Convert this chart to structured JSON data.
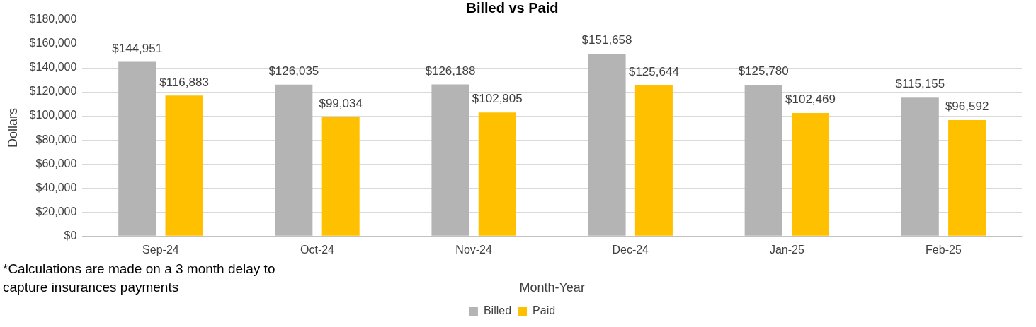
{
  "chart_data": {
    "type": "bar",
    "title": "Billed vs Paid",
    "xlabel": "Month-Year",
    "ylabel": "Dollars",
    "categories": [
      "Sep-24",
      "Oct-24",
      "Nov-24",
      "Dec-24",
      "Jan-25",
      "Feb-25"
    ],
    "series": [
      {
        "name": "Billed",
        "color": "#b4b4b4",
        "values": [
          144951,
          126035,
          126188,
          151658,
          125780,
          115155
        ],
        "value_labels": [
          "$144,951",
          "$126,035",
          "$126,188",
          "$151,658",
          "$125,780",
          "$115,155"
        ]
      },
      {
        "name": "Paid",
        "color": "#ffc000",
        "values": [
          116883,
          99034,
          102905,
          125644,
          102469,
          96592
        ],
        "value_labels": [
          "$116,883",
          "$99,034",
          "$102,905",
          "$125,644",
          "$102,469",
          "$96,592"
        ]
      }
    ],
    "ylim": [
      0,
      180000
    ],
    "yticks": [
      {
        "value": 0,
        "label": "$0"
      },
      {
        "value": 20000,
        "label": "$20,000"
      },
      {
        "value": 40000,
        "label": "$40,000"
      },
      {
        "value": 60000,
        "label": "$60,000"
      },
      {
        "value": 80000,
        "label": "$80,000"
      },
      {
        "value": 100000,
        "label": "$100,000"
      },
      {
        "value": 120000,
        "label": "$120,000"
      },
      {
        "value": 140000,
        "label": "$140,000"
      },
      {
        "value": 160000,
        "label": "$160,000"
      },
      {
        "value": 180000,
        "label": "$180,000"
      }
    ],
    "grid": "y",
    "legend": "bottom",
    "annotations": [
      "*Calculations are made on a 3 month delay to capture insurances payments"
    ]
  }
}
